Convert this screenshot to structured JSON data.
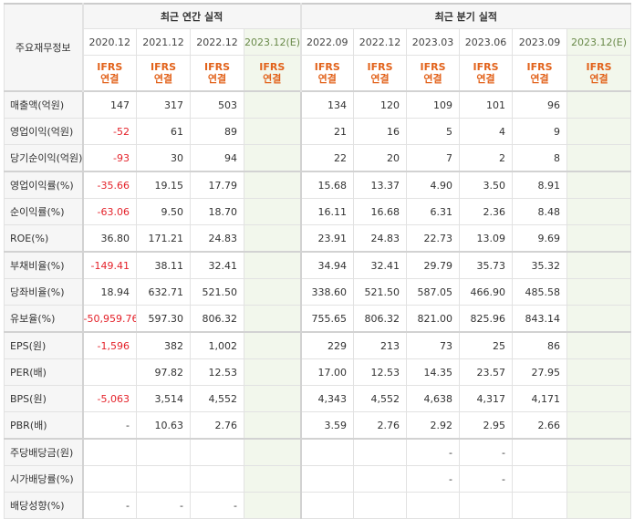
{
  "header": {
    "corner_label": "주요재무정보",
    "annual_title": "최근 연간 실적",
    "quarter_title": "최근 분기 실적"
  },
  "periods": [
    {
      "label": "2020.12",
      "est": false
    },
    {
      "label": "2021.12",
      "est": false
    },
    {
      "label": "2022.12",
      "est": false
    },
    {
      "label": "2023.12(E)",
      "est": true
    },
    {
      "label": "2022.09",
      "est": false
    },
    {
      "label": "2022.12",
      "est": false
    },
    {
      "label": "2023.03",
      "est": false
    },
    {
      "label": "2023.06",
      "est": false
    },
    {
      "label": "2023.09",
      "est": false
    },
    {
      "label": "2023.12(E)",
      "est": true
    }
  ],
  "basis": {
    "line1": "IFRS",
    "line2": "연결"
  },
  "rows": [
    {
      "label": "매출액(억원)",
      "values": [
        "147",
        "317",
        "503",
        "",
        "134",
        "120",
        "109",
        "101",
        "96",
        ""
      ]
    },
    {
      "label": "영업이익(억원)",
      "values": [
        "-52",
        "61",
        "89",
        "",
        "21",
        "16",
        "5",
        "4",
        "9",
        ""
      ]
    },
    {
      "label": "당기순이익(억원)",
      "values": [
        "-93",
        "30",
        "94",
        "",
        "22",
        "20",
        "7",
        "2",
        "8",
        ""
      ]
    },
    {
      "label": "영업이익률(%)",
      "values": [
        "-35.66",
        "19.15",
        "17.79",
        "",
        "15.68",
        "13.37",
        "4.90",
        "3.50",
        "8.91",
        ""
      ]
    },
    {
      "label": "순이익률(%)",
      "values": [
        "-63.06",
        "9.50",
        "18.70",
        "",
        "16.11",
        "16.68",
        "6.31",
        "2.36",
        "8.48",
        ""
      ]
    },
    {
      "label": "ROE(%)",
      "values": [
        "36.80",
        "171.21",
        "24.83",
        "",
        "23.91",
        "24.83",
        "22.73",
        "13.09",
        "9.69",
        ""
      ]
    },
    {
      "label": "부채비율(%)",
      "values": [
        "-149.41",
        "38.11",
        "32.41",
        "",
        "34.94",
        "32.41",
        "29.79",
        "35.73",
        "35.32",
        ""
      ]
    },
    {
      "label": "당좌비율(%)",
      "values": [
        "18.94",
        "632.71",
        "521.50",
        "",
        "338.60",
        "521.50",
        "587.05",
        "466.90",
        "485.58",
        ""
      ]
    },
    {
      "label": "유보율(%)",
      "values": [
        "-50,959.76",
        "597.30",
        "806.32",
        "",
        "755.65",
        "806.32",
        "821.00",
        "825.96",
        "843.14",
        ""
      ]
    },
    {
      "label": "EPS(원)",
      "values": [
        "-1,596",
        "382",
        "1,002",
        "",
        "229",
        "213",
        "73",
        "25",
        "86",
        ""
      ]
    },
    {
      "label": "PER(배)",
      "values": [
        "",
        "97.82",
        "12.53",
        "",
        "17.00",
        "12.53",
        "14.35",
        "23.57",
        "27.95",
        ""
      ]
    },
    {
      "label": "BPS(원)",
      "values": [
        "-5,063",
        "3,514",
        "4,552",
        "",
        "4,343",
        "4,552",
        "4,638",
        "4,317",
        "4,171",
        ""
      ]
    },
    {
      "label": "PBR(배)",
      "values": [
        "-",
        "10.63",
        "2.76",
        "",
        "3.59",
        "2.76",
        "2.92",
        "2.95",
        "2.66",
        ""
      ]
    },
    {
      "label": "주당배당금(원)",
      "values": [
        "",
        "",
        "",
        "",
        "",
        "",
        "-",
        "-",
        "",
        ""
      ]
    },
    {
      "label": "시가배당률(%)",
      "values": [
        "",
        "",
        "",
        "",
        "",
        "",
        "-",
        "-",
        "",
        ""
      ]
    },
    {
      "label": "배당성향(%)",
      "values": [
        "-",
        "-",
        "-",
        "",
        "",
        "",
        "",
        "",
        "",
        ""
      ]
    }
  ]
}
